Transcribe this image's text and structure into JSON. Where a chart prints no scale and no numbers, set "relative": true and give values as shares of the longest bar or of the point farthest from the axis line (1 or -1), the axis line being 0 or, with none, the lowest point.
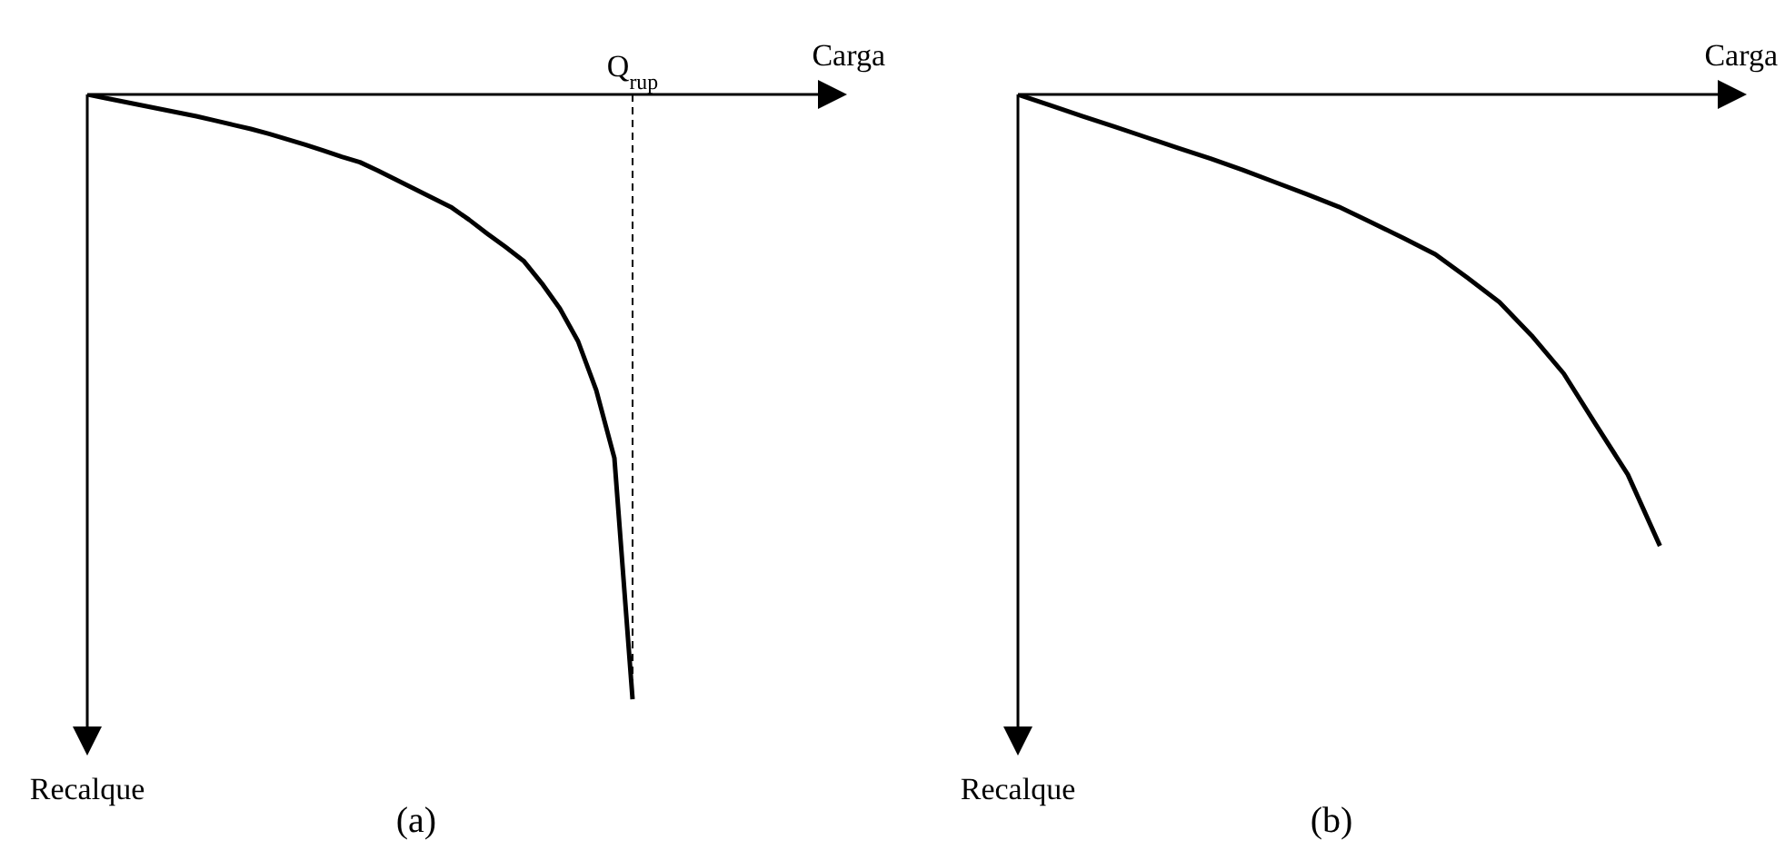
{
  "chart_data": [
    {
      "type": "line",
      "title": "(a)",
      "xlabel": "Carga",
      "annotations": [
        "Recalque"
      ],
      "relative": true,
      "categories": [
        null,
        null,
        null,
        null,
        null,
        null,
        null,
        null,
        null,
        null,
        null,
        null,
        null,
        null,
        null,
        null,
        null,
        null,
        null,
        null,
        null,
        null,
        null,
        null,
        null,
        null,
        null,
        null,
        null,
        null,
        null
      ],
      "series": [
        {
          "color": "#000000",
          "values": [
            0,
            -0.006,
            -0.012,
            -0.018,
            -0.024,
            -0.03,
            -0.036,
            -0.043,
            -0.05,
            -0.057,
            -0.065,
            -0.074,
            -0.083,
            -0.093,
            -0.103,
            -0.112,
            -0.126,
            -0.141,
            -0.156,
            -0.171,
            -0.186,
            -0.207,
            -0.23,
            -0.252,
            -0.275,
            -0.312,
            -0.354,
            -0.408,
            -0.489,
            -0.601,
            -1
          ]
        }
      ],
      "ref_lines": [
        {
          "axis": "x",
          "label": "Q$_{rup}$",
          "color": "#000000",
          "line_style": "dashed"
        }
      ]
    },
    {
      "type": "line",
      "title": "(b)",
      "xlabel": "Carga",
      "annotations": [
        "Recalque"
      ],
      "relative": true,
      "categories": [
        null,
        null,
        null,
        null,
        null,
        null,
        null,
        null,
        null,
        null,
        null,
        null,
        null,
        null,
        null,
        null,
        null,
        null,
        null,
        null,
        null
      ],
      "series": [
        {
          "color": "#000000",
          "values": [
            0,
            -0.024,
            -0.048,
            -0.071,
            -0.095,
            -0.119,
            -0.142,
            -0.167,
            -0.194,
            -0.221,
            -0.249,
            -0.283,
            -0.318,
            -0.354,
            -0.406,
            -0.46,
            -0.534,
            -0.618,
            -0.731,
            -0.842,
            -1
          ]
        }
      ]
    }
  ]
}
